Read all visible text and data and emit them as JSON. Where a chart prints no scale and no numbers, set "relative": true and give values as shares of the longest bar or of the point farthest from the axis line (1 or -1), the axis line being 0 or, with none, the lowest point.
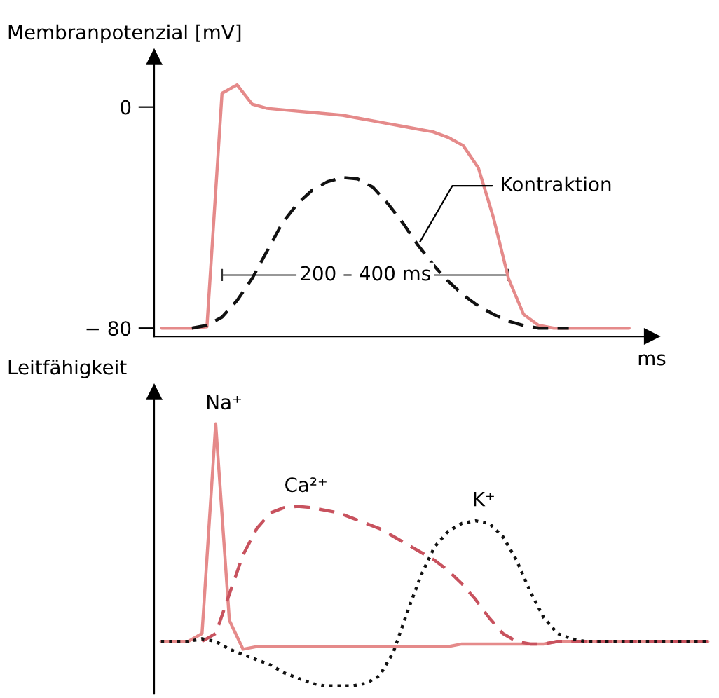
{
  "chart_data": [
    {
      "type": "line",
      "ylabel": "Membranpotenzial [mV]",
      "xlabel": "ms",
      "ylim": [
        -83,
        18
      ],
      "yticks": [
        0,
        {
          "value": -80,
          "label": "− 80"
        }
      ],
      "tick_labels": "y",
      "grid": false,
      "legend": false,
      "annotations": [
        "200 – 400 ms"
      ],
      "categories": [
        null,
        null,
        null,
        null,
        null,
        null,
        null,
        null,
        null,
        null,
        null,
        null,
        null,
        null,
        null,
        null,
        null,
        null,
        null,
        null,
        null,
        null,
        null,
        null,
        null,
        null,
        null,
        null,
        null,
        null,
        null,
        null,
        null
      ],
      "series": [
        {
          "color": "#e58a8a",
          "line_style": "solid",
          "values": [
            -80,
            -80,
            -80,
            -79.5,
            5,
            8,
            1,
            -0.5,
            -1,
            -1.5,
            -2,
            -2.5,
            -3,
            -4,
            -5,
            -6,
            -7,
            -8,
            -9,
            -11,
            -14,
            -22,
            -40,
            -62,
            -75,
            -79,
            -80,
            -80,
            -80,
            -80,
            -80,
            -80,
            null
          ]
        },
        {
          "name": "Kontraktion",
          "color": "#111111",
          "line_style": "dashed",
          "values": [
            null,
            null,
            -80,
            -79,
            -76,
            -70,
            -62,
            -52,
            -42,
            -35,
            -30,
            -27,
            -25.5,
            -26,
            -29,
            -35,
            -42,
            -50,
            -57,
            -63,
            -68,
            -72,
            -75,
            -77.5,
            -79,
            -80,
            -80,
            -80,
            null,
            null,
            null,
            null,
            null
          ]
        }
      ]
    },
    {
      "type": "line",
      "ylabel": "Leitfähigkeit",
      "relative": true,
      "tick_labels": false,
      "grid": false,
      "legend": false,
      "categories": [
        null,
        null,
        null,
        null,
        null,
        null,
        null,
        null,
        null,
        null,
        null,
        null,
        null,
        null,
        null,
        null,
        null,
        null,
        null,
        null,
        null,
        null,
        null,
        null,
        null,
        null,
        null,
        null,
        null,
        null,
        null,
        null,
        null,
        null,
        null,
        null,
        null,
        null,
        null,
        null,
        null
      ],
      "series": [
        {
          "name": "Na⁺",
          "color": "#e58a8a",
          "line_style": "solid",
          "values": [
            0.17,
            0.17,
            0.17,
            0.2,
            1.0,
            0.25,
            0.14,
            0.15,
            0.15,
            0.15,
            0.15,
            0.15,
            0.15,
            0.15,
            0.15,
            0.15,
            0.15,
            0.15,
            0.15,
            0.15,
            0.15,
            0.15,
            0.16,
            0.16,
            0.16,
            0.16,
            0.16,
            0.16,
            0.16,
            0.17,
            0.17,
            0.17,
            0.17,
            0.17,
            0.17,
            0.17,
            0.17,
            0.17,
            0.17,
            0.17,
            0.17
          ]
        },
        {
          "name": "Ca²⁺",
          "color": "#c8525e",
          "line_style": "dashed",
          "values": [
            null,
            null,
            null,
            0.17,
            0.2,
            0.35,
            0.5,
            0.6,
            0.66,
            0.68,
            0.685,
            0.68,
            0.67,
            0.66,
            0.64,
            0.62,
            0.6,
            0.57,
            0.54,
            0.51,
            0.48,
            0.44,
            0.39,
            0.33,
            0.26,
            0.2,
            0.17,
            0.16,
            0.16,
            0.17,
            0.17,
            0.17,
            0.17,
            0.17,
            0.17,
            0.17,
            0.17,
            0.17,
            0.17,
            0.17,
            0.17
          ]
        },
        {
          "name": "K⁺",
          "color": "#111111",
          "line_style": "dotted",
          "values": [
            0.17,
            0.17,
            0.17,
            0.18,
            0.17,
            0.14,
            0.12,
            0.1,
            0.08,
            0.05,
            0.03,
            0.01,
            0,
            0,
            0,
            0.01,
            0.04,
            0.13,
            0.28,
            0.42,
            0.53,
            0.59,
            0.62,
            0.63,
            0.62,
            0.57,
            0.48,
            0.36,
            0.26,
            0.2,
            0.18,
            0.17,
            0.17,
            0.17,
            0.17,
            0.17,
            0.17,
            0.17,
            0.17,
            0.17,
            0.17
          ]
        }
      ]
    }
  ]
}
